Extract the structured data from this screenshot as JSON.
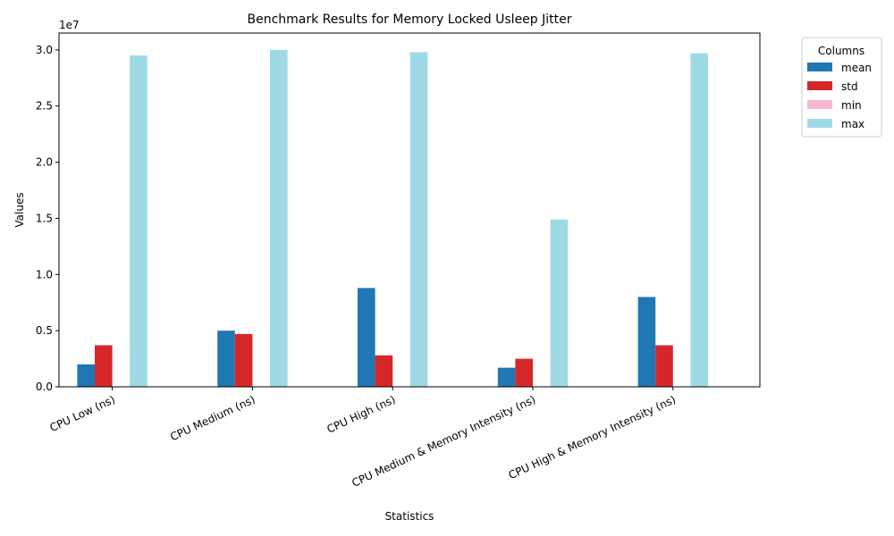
{
  "chart_data": {
    "type": "bar",
    "title": "Benchmark Results for Memory Locked Usleep Jitter",
    "xlabel": "Statistics",
    "ylabel": "Values",
    "offset_label": "1e7",
    "ylim": [
      0,
      31500000
    ],
    "yticks": [
      0,
      5000000,
      10000000,
      15000000,
      20000000,
      25000000,
      30000000
    ],
    "ytick_labels": [
      "0.0",
      "0.5",
      "1.0",
      "1.5",
      "2.0",
      "2.5",
      "3.0"
    ],
    "categories": [
      "CPU Low (ns)",
      "CPU Medium (ns)",
      "CPU High (ns)",
      "CPU Medium & Memory Intensity (ns)",
      "CPU High & Memory Intensity (ns)"
    ],
    "series": [
      {
        "name": "mean",
        "color": "#1f77b4",
        "values": [
          2000000,
          5000000,
          8800000,
          1700000,
          8000000
        ]
      },
      {
        "name": "std",
        "color": "#d62728",
        "values": [
          3700000,
          4700000,
          2800000,
          2500000,
          3700000
        ]
      },
      {
        "name": "min",
        "color": "#f7b6d2",
        "values": [
          0,
          0,
          0,
          0,
          0
        ]
      },
      {
        "name": "max",
        "color": "#9edae5",
        "values": [
          29500000,
          30000000,
          29800000,
          14900000,
          29700000
        ]
      }
    ],
    "legend": {
      "title": "Columns",
      "placement": "outside-top-right"
    },
    "grid": false
  }
}
